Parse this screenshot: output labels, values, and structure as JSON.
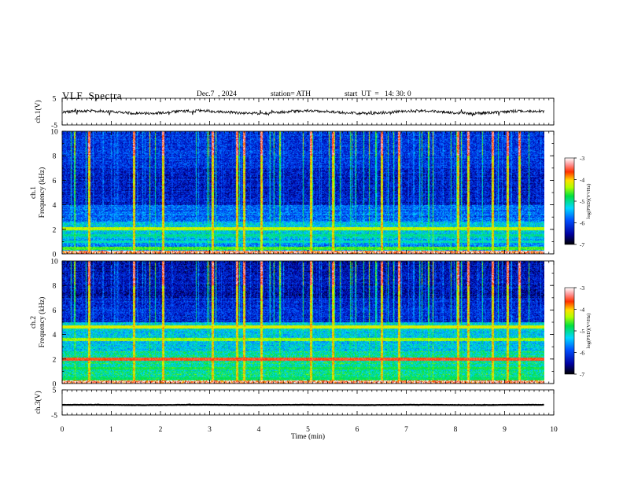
{
  "header": {
    "title": "VLF  Spectra",
    "date": "Dec.7  , 2024",
    "station": "station= ATH",
    "start": "start  UT  =   14: 30: 0"
  },
  "chart_data": {
    "type": "heatmap",
    "xlabel": "Time  (min)",
    "xlim": [
      0,
      10
    ],
    "x_ticks": [
      "0",
      "1",
      "2",
      "3",
      "4",
      "5",
      "6",
      "7",
      "8",
      "9",
      "10"
    ],
    "panels": [
      {
        "id": "ch1-waveform",
        "type": "line",
        "ylabel": "ch.1(V)",
        "ylim": [
          -5,
          5
        ],
        "y_ticks": [
          "5",
          "-5"
        ],
        "series_level": -0.2,
        "noise_amplitude": 1.3
      },
      {
        "id": "ch1-spectrogram",
        "type": "heatmap",
        "ylabel_top": "ch.1",
        "ylabel": "Frequency (kHz)",
        "ylim": [
          0,
          10
        ],
        "y_ticks": [
          "0",
          "2",
          "4",
          "6",
          "8",
          "10"
        ],
        "colorbar": {
          "label": "log(PSD)(V²/Hz)",
          "range": [
            -7,
            -3
          ],
          "ticks": [
            "-3",
            "-4",
            "-5",
            "-6",
            "-7"
          ]
        },
        "noise_bands_kHz": [
          {
            "kHz": 2.05,
            "log_psd": -4.3
          },
          {
            "kHz": 1.5,
            "log_psd": -5.0
          },
          {
            "kHz": 1.0,
            "log_psd": -5.1
          },
          {
            "kHz": 0.45,
            "log_psd": -4.6
          },
          {
            "kHz": 0.15,
            "log_psd": -3.6
          }
        ]
      },
      {
        "id": "ch2-spectrogram",
        "type": "heatmap",
        "ylabel_top": "ch.2",
        "ylabel": "Frequency (kHz)",
        "ylim": [
          0,
          10
        ],
        "y_ticks": [
          "0",
          "2",
          "4",
          "6",
          "8",
          "10"
        ],
        "colorbar": {
          "label": "log(PSD)(V²/Hz)",
          "range": [
            -7,
            -3
          ],
          "ticks": [
            "-3",
            "-4",
            "-5",
            "-6",
            "-7"
          ]
        },
        "noise_bands_kHz": [
          {
            "kHz": 4.6,
            "log_psd": -4.2
          },
          {
            "kHz": 3.6,
            "log_psd": -4.4
          },
          {
            "kHz": 2.0,
            "log_psd": -3.6
          },
          {
            "kHz": 1.25,
            "log_psd": -4.8
          },
          {
            "kHz": 0.4,
            "log_psd": -4.9
          }
        ]
      },
      {
        "id": "ch3-waveform",
        "type": "line",
        "ylabel": "ch.3(V)",
        "ylim": [
          -5,
          5
        ],
        "y_ticks": [
          "5",
          "-5"
        ],
        "series_level": -1.0,
        "noise_amplitude": 0.15
      }
    ],
    "strong_sferics_min": [
      0.55,
      1.45,
      2.05,
      3.05,
      3.55,
      3.7,
      4.05,
      5.05,
      5.5,
      6.5,
      6.85,
      8.05,
      8.25,
      8.75,
      9.05,
      9.3
    ]
  }
}
